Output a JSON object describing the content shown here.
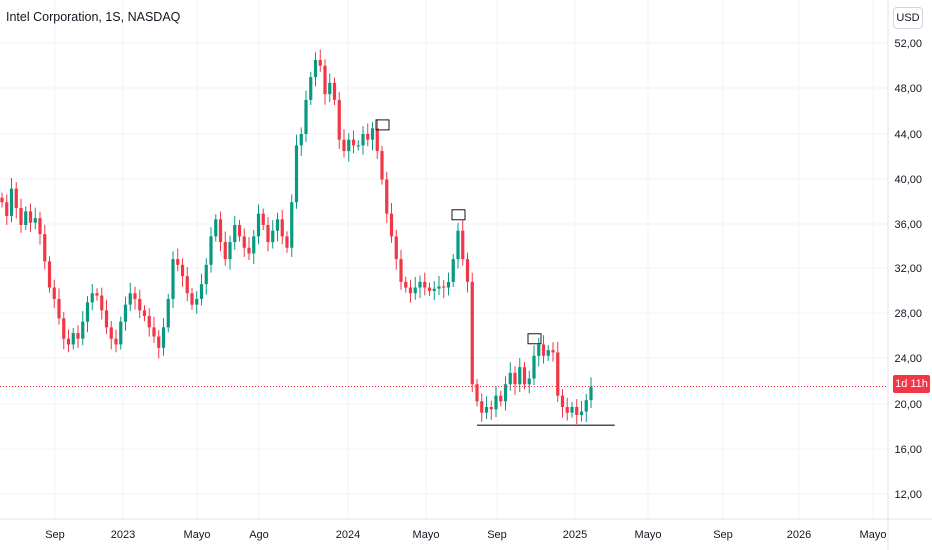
{
  "header": {
    "title": "Intel Corporation, 1S, NASDAQ",
    "currency": "USD"
  },
  "last_label": "1d 11h",
  "colors": {
    "up": "#089981",
    "down": "#f23645",
    "grid": "#f0f3fa",
    "axis": "#e0e3eb",
    "annotation": "#131722"
  },
  "chart_data": {
    "type": "candlestick",
    "title": "Intel Corporation, 1S, NASDAQ",
    "interval": "1S",
    "currency": "USD",
    "ylim": [
      10,
      54
    ],
    "y_ticks": [
      "52,00",
      "48,00",
      "44,00",
      "40,00",
      "36,00",
      "32,00",
      "28,00",
      "24,00",
      "20,00",
      "16,00",
      "12,00"
    ],
    "x_ticks": [
      "Sep",
      "2023",
      "Mayo",
      "Ago",
      "2024",
      "Mayo",
      "Sep",
      "2025",
      "Mayo",
      "Sep",
      "2026",
      "Mayo"
    ],
    "last_price": 21.8,
    "grid": true,
    "closes": [
      38.0,
      36.8,
      39.2,
      37.5,
      36.0,
      37.2,
      36.2,
      36.6,
      35.2,
      32.8,
      30.5,
      29.5,
      27.8,
      26.0,
      25.5,
      26.5,
      26.0,
      27.5,
      29.2,
      30.0,
      29.8,
      28.5,
      27.0,
      26.0,
      25.5,
      27.5,
      29.0,
      30.0,
      29.5,
      28.5,
      28.0,
      27.0,
      26.2,
      25.2,
      27.0,
      29.5,
      33.0,
      32.5,
      31.5,
      30.0,
      29.0,
      29.5,
      30.8,
      32.5,
      35.0,
      36.5,
      34.5,
      33.0,
      34.5,
      36.0,
      35.0,
      34.0,
      33.5,
      35.0,
      37.0,
      36.0,
      34.5,
      35.5,
      36.5,
      35.0,
      34.0,
      38.0,
      43.0,
      44.0,
      47.0,
      49.0,
      50.5,
      50.0,
      47.5,
      48.5,
      47.0,
      43.5,
      42.5,
      43.5,
      43.0,
      43.0,
      44.0,
      43.5,
      44.5,
      42.5,
      40.0,
      37.0,
      35.0,
      33.0,
      31.0,
      30.5,
      30.0,
      30.5,
      31.0,
      30.5,
      30.2,
      30.4,
      30.6,
      30.5,
      31.0,
      33.0,
      35.5,
      33.0,
      31.0,
      22.0,
      20.5,
      19.5,
      20.0,
      19.8,
      21.0,
      20.5,
      22.0,
      23.0,
      22.0,
      23.5,
      22.0,
      22.5,
      24.5,
      25.5,
      24.5,
      25.0,
      24.8,
      21.0,
      20.0,
      19.5,
      20.0,
      19.3,
      19.6,
      20.6,
      21.8
    ]
  },
  "annotations": {
    "boxes": [
      {
        "x_index": 80,
        "price": 44.8
      },
      {
        "x_index": 96,
        "price": 36.9
      },
      {
        "x_index": 112,
        "price": 26.0
      }
    ],
    "support_level": 18.4
  }
}
